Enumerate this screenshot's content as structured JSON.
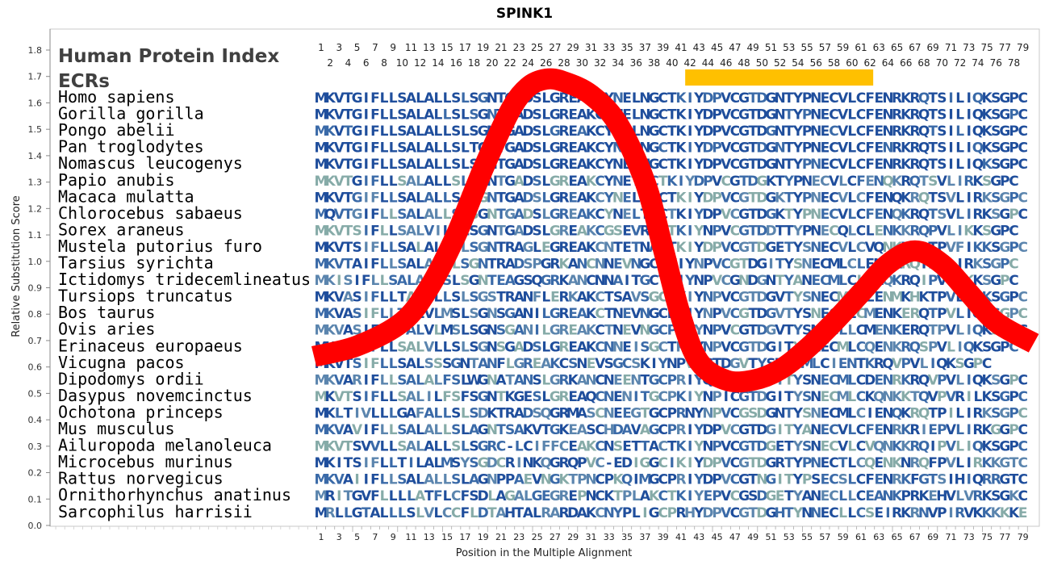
{
  "chart_data": {
    "type": "line",
    "title": "SPINK1",
    "xlabel": "Position in the Multiple Alignment",
    "ylabel": "Relative Substitution Score",
    "xlim": [
      1,
      80
    ],
    "ylim": [
      0.0,
      1.85
    ],
    "yticks": [
      "0.0",
      "0.1",
      "0.2",
      "0.3",
      "0.4",
      "0.5",
      "0.6",
      "0.7",
      "0.8",
      "0.9",
      "1.0",
      "1.1",
      "1.2",
      "1.3",
      "1.4",
      "1.5",
      "1.6",
      "1.7",
      "1.8"
    ],
    "xticks_bottom": [
      1,
      3,
      5,
      7,
      9,
      11,
      13,
      15,
      17,
      19,
      21,
      23,
      25,
      27,
      29,
      31,
      33,
      35,
      37,
      39,
      41,
      43,
      45,
      47,
      49,
      51,
      53,
      55,
      57,
      59,
      61,
      63,
      65,
      67,
      69,
      71,
      73,
      75,
      77,
      79
    ],
    "header_labels": [
      "Human Protein Index",
      "ECRs"
    ],
    "highlight_region": {
      "start": 42,
      "end": 62,
      "color": "#FFC000"
    },
    "curve_color": "#FF0000",
    "series": [
      {
        "x": [
          0.2,
          5,
          10,
          13,
          16,
          19,
          22,
          24,
          26,
          28,
          31,
          34,
          37,
          39,
          41,
          43,
          46,
          49,
          52,
          55,
          58,
          61,
          64,
          67,
          70,
          73,
          76,
          80.2
        ],
        "y": [
          0.64,
          0.68,
          0.77,
          0.9,
          1.1,
          1.35,
          1.57,
          1.66,
          1.69,
          1.68,
          1.63,
          1.52,
          1.3,
          1.05,
          0.79,
          0.62,
          0.55,
          0.55,
          0.59,
          0.67,
          0.77,
          0.88,
          0.99,
          1.04,
          0.99,
          0.88,
          0.77,
          0.69
        ]
      }
    ],
    "alignment": [
      {
        "species": "Homo sapiens",
        "seq": "MKVTGIFLLSALALLSLSGNTGADSLGREAKCYNELNGCTKIYDPVCGTDGNTYPNECVLCFENRKRQTSILIQKSGPC"
      },
      {
        "species": "Gorilla gorilla",
        "seq": "MKVTGIFLLSALALLSLSGNTGADSLGREAKCYNELNGCTKIYDPVCGTDGNTYPNECVLCFENRKRQTSILIQKSGPC"
      },
      {
        "species": "Pongo abelii",
        "seq": "MKVTGIFLLSALALLSLSGNTGADSLGREAKCYNELNGCTKIYDPVCGTDGNTYPNECVLCFENRKRQTSILIQKSGPC"
      },
      {
        "species": "Pan troglodytes",
        "seq": "MKVTGIFLLSALALLSLTGNTGADSLGREAKCYNELNGCTKIYDPVCGTDGNTYPNECVLCFENRKRQTSILIQKSGPC"
      },
      {
        "species": "Nomascus leucogenys",
        "seq": "MKVTGIFLLSALALLSLSGNTGADSLGREAKCYNELNGCTKIYDPVCGTDGNTYPNECVLCFENRKRQTSILIQKSGPC"
      },
      {
        "species": "Papio anubis",
        "seq": "MKVTGIFLLSALALLSLSGNTGADSLGREAKCYNETGCTKIYDPVCGTDGKTYPNECVLCFENQKRQTSVLIRKSGPC"
      },
      {
        "species": "Macaca mulatta",
        "seq": "MKVTGIFLLSALALLSLSGNTGADSLGREAKCYNELTGCTKIYDPVCGTDGKTYPNECVLCFENQKRQTSVLIRKSGPC"
      },
      {
        "species": "Chlorocebus sabaeus",
        "seq": "MQVTGIFLLSALALLSLSGNTGADSLGREAKCYNELTGCTKIYDPVCGTDGKTYPNECVLCFENQKRQTSVLIRKSGPC"
      },
      {
        "species": "Sorex araneus",
        "seq": "MKVTSIFLLSALVILSLSGNTGADSLGREAKCGSEVRGCTKIYNPVCGTDDTTYPNECQLCLENKKRQPVLIKKSGPC"
      },
      {
        "species": "Mustela putorius furo",
        "seq": "MKVTSIFLLSALALLSLSGNTRAGLEGREAKCNTETNACTKIYDPVCGTDGETYSNECVLCVQNKKRQTPVFIKKSGPC"
      },
      {
        "species": "Tarsius syrichta",
        "seq": "MKVTAIFLLSALALFLSGNTRADSPGRKANCNNEVNGCNKIYNPVCGTDGITYSNECMLCLENQKRQTPVLIRKSGPC"
      },
      {
        "species": "Ictidomys tridecemlineatus",
        "seq": "MKISIFLLSALALLSLSGNTEAGSQGRKANCNNAITGCTKIYNPVCGNDGNTYANECMLCLENQKRQIPVLIKKSGPC"
      },
      {
        "species": "Tursiops truncatus",
        "seq": "MKVASIFLLTALVLLSLSGSTRANFLERKAKCTSAVSGCPKIYNPVCGTDGVTYSNECMLCLENMKHKTPVLIQKSGPC"
      },
      {
        "species": "Bos taurus",
        "seq": "MKVASIFLLTALVLMSLSGNSGANILGREAKCTNEVNGCPRIYNPVCGTDGVTYSNECLLCMENKERQTPVLIQKSGPC"
      },
      {
        "species": "Ovis aries",
        "seq": "MKVASIFLLTALVLMSLSGNSGANILGREAKCTNEVNGCPRIYNPVCGTDGVTYSNECLLCMENKERQTPVLIQKSGPC"
      },
      {
        "species": "Erinaceus europaeus",
        "seq": "MKVTSIFLLSALVLLSLSGNSGADSLGREAKCNNEISGCTKIYNPVCGTDGITYSNECMLCQENKRQSPVLIQKSGPC"
      },
      {
        "species": "Vicugna pacos",
        "seq": "MKVTSIFLLSALSSSGNTANFLGREAKCSNEVSGCSKIYNPVCGTDGVTYSNECMLCIENTKRQVPVLIQKSGPC"
      },
      {
        "species": "Dipodomys ordii",
        "seq": "MKVARIFLLSALALFSLWGNATANSLGRKANCNEENTGCPRIYQPVCGTDGTTYSNECMLCDENRKRQVPVLIQKSGPC"
      },
      {
        "species": "Dasypus novemcinctus",
        "seq": "MKVTSIFLLSALILFSFSGNTKGESLGREAQCNENITGCPKIYNPICGTDGITYSNECMLCKQNKKTQVPVRILKSGPC"
      },
      {
        "species": "Ochotona princeps",
        "seq": "MKLTIVLLLGAFALLSLSDKTRADSQGRMASCNEEGTGCPRNYNPVCGSDGNTYSNECMLCIENQKRQTPILIRKSGPC"
      },
      {
        "species": "Mus musculus",
        "seq": "MKVAVIFLLSALALLSLAGNTSAKVTGKEASCHDAVAGCPRIYDPVCGTDGITYANECVLCFENRKRIEPVLIRKGGPC"
      },
      {
        "species": "Ailuropoda melanoleuca",
        "seq": "MKVTSVVLLSALALLSLSGRC-LCIFFCEAKCNSETTACTKIYNPVCGTDGETYSNECVLCVQNKKRQIPVLIQKSGPC"
      },
      {
        "species": "Microcebus murinus",
        "seq": "MKITSIFLLTILALMSYSGDCRINKQGRQPVC-EDIGGCIKIYDPVCGTDGRTYPNECTLCQENKNRQFPVLIRKKGTC"
      },
      {
        "species": "Rattus norvegicus",
        "seq": "MKVAIIFLLSALALLSLAGNPPAEVNGKTPNCPKQIMGCPRIYDPVCGTNGITYPSECSLCFENRKFGTSIHIQRRGTC"
      },
      {
        "species": "Ornithorhynchus anatinus",
        "seq": "MRITGVFLLLLATFLCFSDLAGALGEGREPNCKTPLAKCTKIYEPVCGSDGETYANECLLCEANKPRKEHVLVRKSGKC"
      },
      {
        "species": "Sarcophilus harrisii",
        "seq": "MRLLGTALLLSLVLCCFLDTAHTALRARDAKCNYPLIGCPRHYDPVCGTDGHTYNNECLLCSEIRKRNVPIRVKKKKKE"
      }
    ],
    "residue_colors": [
      "#1F4E9C",
      "#3A6AA8",
      "#5B85AE",
      "#86ABA8"
    ]
  }
}
